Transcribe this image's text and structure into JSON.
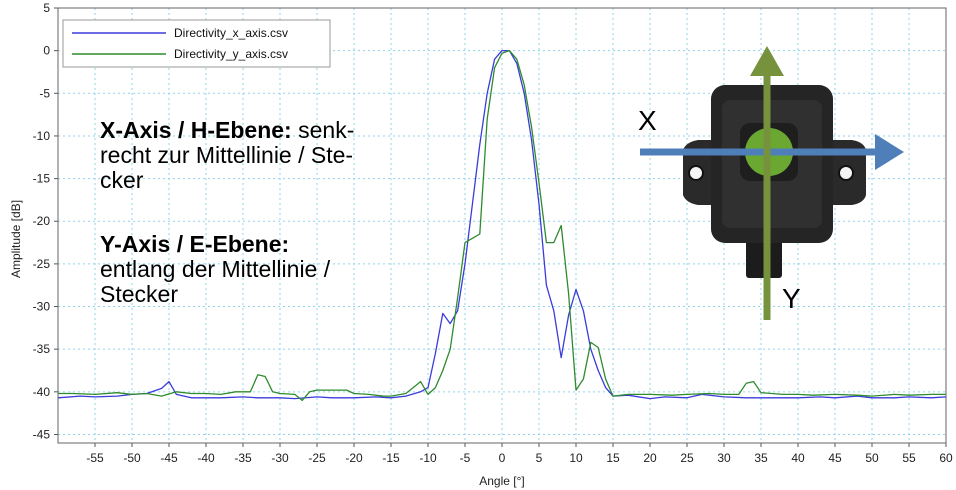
{
  "chart_data": {
    "type": "line",
    "xlabel": "Angle [°]",
    "ylabel": "Amplitude [dB]",
    "xlim": [
      -60,
      60
    ],
    "ylim": [
      -46,
      5
    ],
    "xticks": [
      -55,
      -50,
      -45,
      -40,
      -35,
      -30,
      -25,
      -20,
      -15,
      -10,
      -5,
      0,
      5,
      10,
      15,
      20,
      25,
      30,
      35,
      40,
      45,
      50,
      55,
      60
    ],
    "yticks": [
      5,
      0,
      -5,
      -10,
      -15,
      -20,
      -25,
      -30,
      -35,
      -40,
      -45
    ],
    "grid": true,
    "legend_position": "top-left",
    "series": [
      {
        "name": "Directivity_x_axis.csv",
        "color": "#3b3bdc",
        "points": [
          [
            -60,
            -40.7
          ],
          [
            -57,
            -40.5
          ],
          [
            -55,
            -40.6
          ],
          [
            -52,
            -40.5
          ],
          [
            -50,
            -40.3
          ],
          [
            -48,
            -40.2
          ],
          [
            -46,
            -39.6
          ],
          [
            -45,
            -38.8
          ],
          [
            -44,
            -40.3
          ],
          [
            -42,
            -40.7
          ],
          [
            -40,
            -40.7
          ],
          [
            -38,
            -40.7
          ],
          [
            -35,
            -40.6
          ],
          [
            -33,
            -40.7
          ],
          [
            -30,
            -40.7
          ],
          [
            -28,
            -40.8
          ],
          [
            -25,
            -40.6
          ],
          [
            -23,
            -40.7
          ],
          [
            -20,
            -40.7
          ],
          [
            -17,
            -40.6
          ],
          [
            -15,
            -40.7
          ],
          [
            -13,
            -40.5
          ],
          [
            -11,
            -40.0
          ],
          [
            -10,
            -39.5
          ],
          [
            -9,
            -35.5
          ],
          [
            -8,
            -30.8
          ],
          [
            -7,
            -32.0
          ],
          [
            -6,
            -30.5
          ],
          [
            -5,
            -25.0
          ],
          [
            -4,
            -18.0
          ],
          [
            -3,
            -11.0
          ],
          [
            -2,
            -5.0
          ],
          [
            -1,
            -1.0
          ],
          [
            0,
            0.0
          ],
          [
            1,
            0.0
          ],
          [
            2,
            -1.5
          ],
          [
            3,
            -5.0
          ],
          [
            4,
            -10.5
          ],
          [
            5,
            -18.0
          ],
          [
            6,
            -27.5
          ],
          [
            7,
            -30.5
          ],
          [
            8,
            -36.0
          ],
          [
            9,
            -31.0
          ],
          [
            10,
            -28.0
          ],
          [
            11,
            -30.5
          ],
          [
            12,
            -35.0
          ],
          [
            13,
            -37.5
          ],
          [
            14,
            -39.5
          ],
          [
            15,
            -40.5
          ],
          [
            17,
            -40.4
          ],
          [
            20,
            -40.8
          ],
          [
            22,
            -40.6
          ],
          [
            25,
            -40.7
          ],
          [
            27,
            -40.3
          ],
          [
            30,
            -40.6
          ],
          [
            33,
            -40.7
          ],
          [
            35,
            -40.7
          ],
          [
            38,
            -40.7
          ],
          [
            40,
            -40.7
          ],
          [
            43,
            -40.6
          ],
          [
            45,
            -40.7
          ],
          [
            48,
            -40.5
          ],
          [
            50,
            -40.7
          ],
          [
            53,
            -40.7
          ],
          [
            55,
            -40.6
          ],
          [
            58,
            -40.7
          ],
          [
            60,
            -40.6
          ]
        ]
      },
      {
        "name": "Directivity_y_axis.csv",
        "color": "#2e8b2e",
        "points": [
          [
            -60,
            -40.2
          ],
          [
            -58,
            -40.2
          ],
          [
            -55,
            -40.3
          ],
          [
            -52,
            -40.1
          ],
          [
            -50,
            -40.3
          ],
          [
            -48,
            -40.2
          ],
          [
            -46,
            -40.5
          ],
          [
            -44,
            -40.0
          ],
          [
            -42,
            -40.2
          ],
          [
            -40,
            -40.2
          ],
          [
            -38,
            -40.3
          ],
          [
            -36,
            -40.0
          ],
          [
            -34,
            -40.0
          ],
          [
            -33,
            -38.0
          ],
          [
            -32,
            -38.2
          ],
          [
            -31,
            -40.0
          ],
          [
            -30,
            -40.2
          ],
          [
            -28,
            -40.3
          ],
          [
            -27,
            -41.0
          ],
          [
            -26,
            -40.0
          ],
          [
            -25,
            -39.8
          ],
          [
            -23,
            -39.8
          ],
          [
            -21,
            -39.8
          ],
          [
            -20,
            -40.2
          ],
          [
            -18,
            -40.3
          ],
          [
            -16,
            -40.5
          ],
          [
            -15,
            -40.5
          ],
          [
            -13,
            -40.2
          ],
          [
            -12,
            -39.5
          ],
          [
            -11,
            -38.8
          ],
          [
            -10,
            -40.3
          ],
          [
            -9,
            -39.5
          ],
          [
            -8,
            -37.5
          ],
          [
            -7,
            -35.0
          ],
          [
            -6,
            -29.0
          ],
          [
            -5,
            -22.5
          ],
          [
            -4,
            -22.0
          ],
          [
            -3,
            -21.5
          ],
          [
            -2,
            -8.0
          ],
          [
            -1,
            -2.0
          ],
          [
            0,
            -0.3
          ],
          [
            1,
            0.0
          ],
          [
            2,
            -1.0
          ],
          [
            3,
            -4.0
          ],
          [
            4,
            -9.0
          ],
          [
            5,
            -15.5
          ],
          [
            6,
            -22.5
          ],
          [
            7,
            -22.5
          ],
          [
            8,
            -20.5
          ],
          [
            9,
            -28.5
          ],
          [
            10,
            -39.8
          ],
          [
            11,
            -38.5
          ],
          [
            12,
            -34.2
          ],
          [
            13,
            -34.8
          ],
          [
            14,
            -38.5
          ],
          [
            15,
            -40.5
          ],
          [
            17,
            -40.3
          ],
          [
            20,
            -40.3
          ],
          [
            23,
            -40.4
          ],
          [
            25,
            -40.3
          ],
          [
            28,
            -40.2
          ],
          [
            30,
            -40.3
          ],
          [
            32,
            -40.3
          ],
          [
            33,
            -39.0
          ],
          [
            34,
            -38.8
          ],
          [
            35,
            -40.1
          ],
          [
            38,
            -40.3
          ],
          [
            40,
            -40.3
          ],
          [
            42,
            -40.4
          ],
          [
            45,
            -40.3
          ],
          [
            48,
            -40.4
          ],
          [
            50,
            -40.5
          ],
          [
            53,
            -40.3
          ],
          [
            55,
            -40.4
          ],
          [
            58,
            -40.3
          ],
          [
            60,
            -40.3
          ]
        ]
      }
    ]
  },
  "annotations": {
    "x_title": "X-Axis / H-Ebene:",
    "x_text_1": " senk-",
    "x_text_2": "recht zur Mittellinie / Ste-",
    "x_text_3": "cker",
    "y_title": "Y-Axis / E-Ebene:",
    "y_text_1": "entlang der Mittellinie /",
    "y_text_2": "Stecker"
  },
  "sensor_graphic": {
    "x_label": "X",
    "y_label": "Y",
    "x_arrow_color": "#4f7fb8",
    "y_arrow_color": "#76923c",
    "lens_color": "#6aa832"
  }
}
